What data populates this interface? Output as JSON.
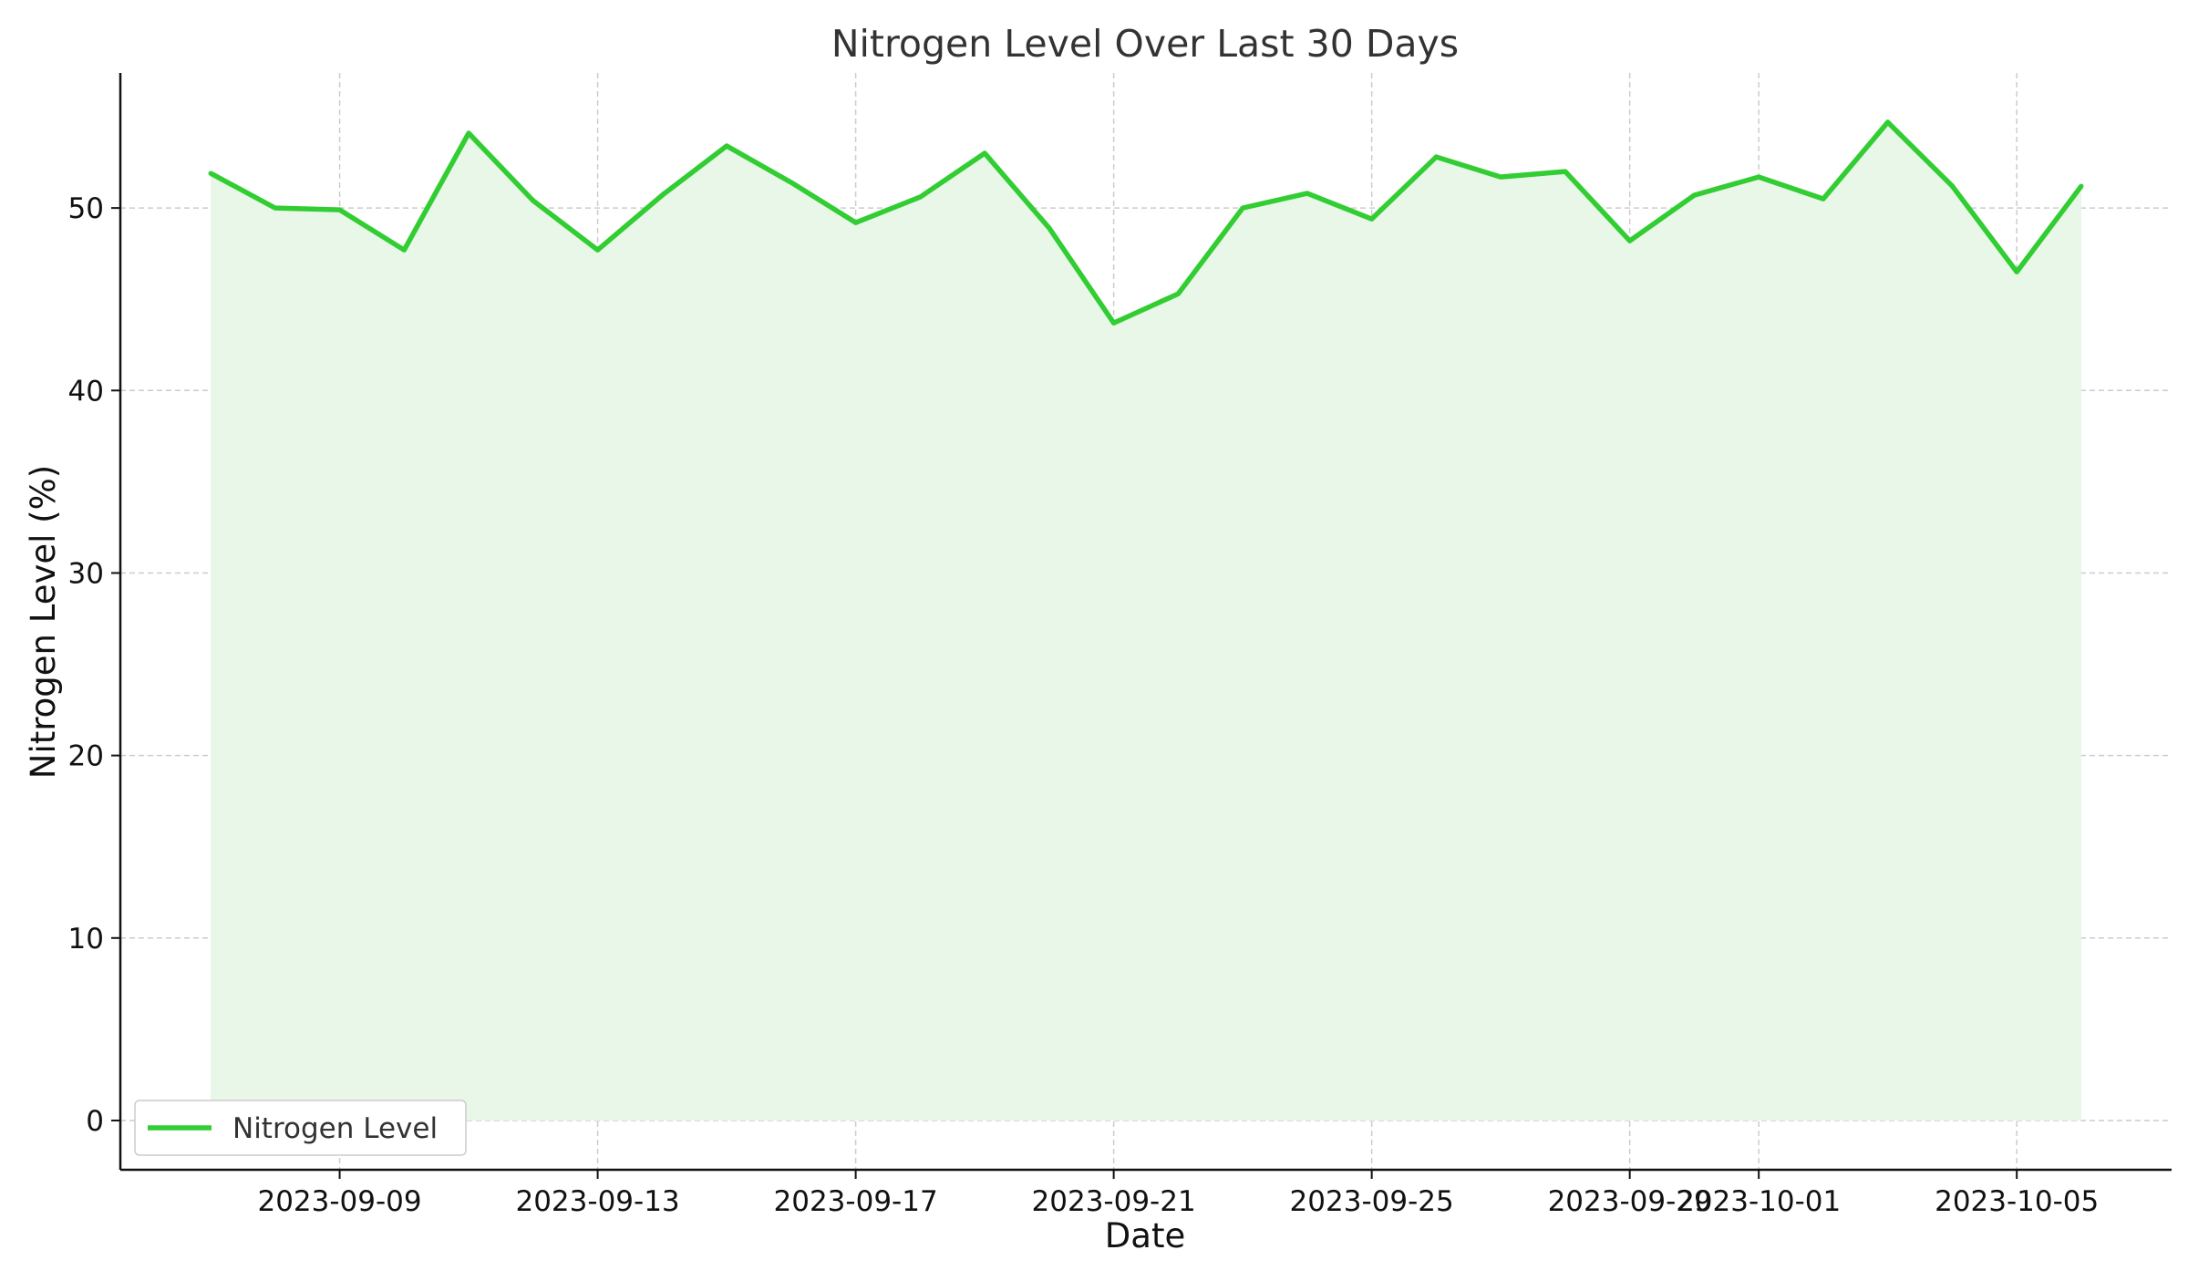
{
  "chart_data": {
    "type": "area",
    "title": "Nitrogen Level Over Last 30 Days",
    "xlabel": "Date",
    "ylabel": "Nitrogen Level (%)",
    "x": [
      "2023-09-07",
      "2023-09-08",
      "2023-09-09",
      "2023-09-10",
      "2023-09-11",
      "2023-09-12",
      "2023-09-13",
      "2023-09-14",
      "2023-09-15",
      "2023-09-16",
      "2023-09-17",
      "2023-09-18",
      "2023-09-19",
      "2023-09-20",
      "2023-09-21",
      "2023-09-22",
      "2023-09-23",
      "2023-09-24",
      "2023-09-25",
      "2023-09-26",
      "2023-09-27",
      "2023-09-28",
      "2023-09-29",
      "2023-09-30",
      "2023-10-01",
      "2023-10-02",
      "2023-10-03",
      "2023-10-04",
      "2023-10-05",
      "2023-10-06"
    ],
    "series": [
      {
        "name": "Nitrogen Level",
        "color": "#32cd32",
        "fill_color": "#e8f7e8",
        "values": [
          51.9,
          50.0,
          49.9,
          47.7,
          54.1,
          50.4,
          47.7,
          50.7,
          53.4,
          51.4,
          49.2,
          50.6,
          53.0,
          48.9,
          43.7,
          45.3,
          50.0,
          50.8,
          49.4,
          52.8,
          51.7,
          52.0,
          48.2,
          50.7,
          51.7,
          50.5,
          54.7,
          51.2,
          46.5,
          51.2
        ]
      }
    ],
    "x_ticks": [
      "2023-09-09",
      "2023-09-13",
      "2023-09-17",
      "2023-09-21",
      "2023-09-25",
      "2023-09-29",
      "2023-10-01",
      "2023-10-05"
    ],
    "y_ticks": [
      0,
      10,
      20,
      30,
      40,
      50
    ],
    "xlim": [
      "2023-09-05 14:24",
      "2023-10-07 09:36"
    ],
    "ylim": [
      -2.7,
      57.4
    ],
    "grid": true,
    "legend_position": "lower-left"
  }
}
